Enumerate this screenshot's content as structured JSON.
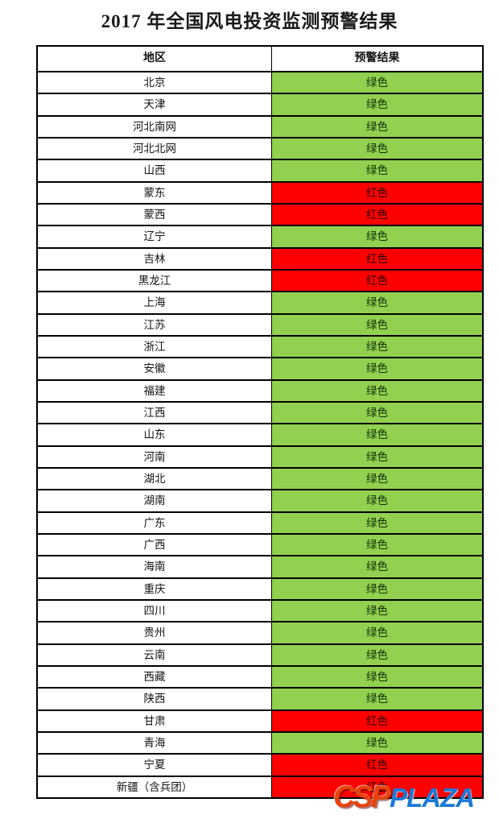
{
  "title": "2017 年全国风电投资监测预警结果",
  "status_colors": {
    "绿色": "#92D050",
    "红色": "#FF0000"
  },
  "table": {
    "col_headers": [
      "地区",
      "预警结果"
    ]
  },
  "chart_data": {
    "type": "table",
    "title": "2017 年全国风电投资监测预警结果",
    "columns": [
      "地区",
      "预警结果"
    ],
    "rows": [
      [
        "北京",
        "绿色"
      ],
      [
        "天津",
        "绿色"
      ],
      [
        "河北南网",
        "绿色"
      ],
      [
        "河北北网",
        "绿色"
      ],
      [
        "山西",
        "绿色"
      ],
      [
        "蒙东",
        "红色"
      ],
      [
        "蒙西",
        "红色"
      ],
      [
        "辽宁",
        "绿色"
      ],
      [
        "吉林",
        "红色"
      ],
      [
        "黑龙江",
        "红色"
      ],
      [
        "上海",
        "绿色"
      ],
      [
        "江苏",
        "绿色"
      ],
      [
        "浙江",
        "绿色"
      ],
      [
        "安徽",
        "绿色"
      ],
      [
        "福建",
        "绿色"
      ],
      [
        "江西",
        "绿色"
      ],
      [
        "山东",
        "绿色"
      ],
      [
        "河南",
        "绿色"
      ],
      [
        "湖北",
        "绿色"
      ],
      [
        "湖南",
        "绿色"
      ],
      [
        "广东",
        "绿色"
      ],
      [
        "广西",
        "绿色"
      ],
      [
        "海南",
        "绿色"
      ],
      [
        "重庆",
        "绿色"
      ],
      [
        "四川",
        "绿色"
      ],
      [
        "贵州",
        "绿色"
      ],
      [
        "云南",
        "绿色"
      ],
      [
        "西藏",
        "绿色"
      ],
      [
        "陕西",
        "绿色"
      ],
      [
        "甘肃",
        "红色"
      ],
      [
        "青海",
        "绿色"
      ],
      [
        "宁夏",
        "红色"
      ],
      [
        "新疆（含兵团）",
        "红色"
      ]
    ]
  },
  "watermark": {
    "part1": "CSP",
    "part2": "PLAZA",
    "part1_color": "#E8430D",
    "part2_color": "#1C79D6"
  }
}
